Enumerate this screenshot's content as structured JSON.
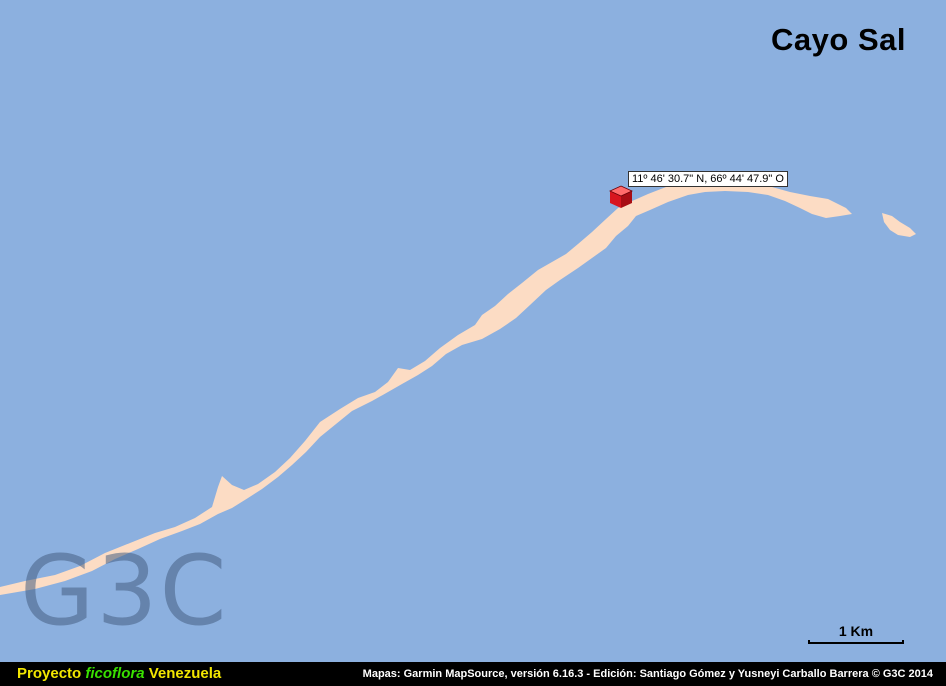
{
  "map": {
    "title": "Cayo Sal",
    "watermark": "G3C",
    "waypoint": {
      "label": "11º 46' 30.7\" N, 66º 44' 47.9\" O",
      "icon": "red-cube-waypoint-icon"
    },
    "scale": {
      "label": "1 Km"
    },
    "colors": {
      "water": "#8cb0df",
      "land": "#fcdcc4",
      "marker": "#e0202a"
    }
  },
  "footer": {
    "project_word": "Proyecto",
    "project_name": "ficoflora",
    "project_country": "Venezuela",
    "credits": "Mapas: Garmin MapSource, versión 6.16.3 - Edición: Santiago Gómez y Yusneyi Carballo Barrera  © G3C 2014",
    "colors": {
      "project": "#f2e600",
      "name": "#39e000"
    }
  }
}
